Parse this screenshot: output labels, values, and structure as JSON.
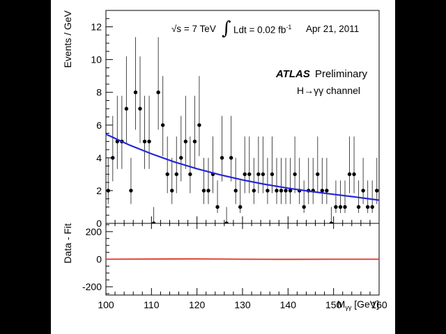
{
  "colors": {
    "background": "#000000",
    "panel": "#ffffff",
    "fit": "#2424d8",
    "residual": "#e0301e",
    "data": "#000000"
  },
  "annotations": {
    "energy": "√s = 7 TeV",
    "integral_symbol": "∫",
    "lumi": "Ldt = 0.02 fb",
    "lumi_exp": "-1",
    "date": "Apr 21, 2011",
    "experiment": "ATLAS",
    "status": "Preliminary",
    "channel": "H→γγ channel"
  },
  "chart_data": [
    {
      "type": "scatter",
      "name": "main",
      "ylabel": "Events / GeV",
      "xlim": [
        100,
        160
      ],
      "ylim": [
        0,
        13
      ],
      "yticks": [
        0,
        2,
        4,
        6,
        8,
        10,
        12
      ],
      "grid": false,
      "series": [
        {
          "name": "Data",
          "x": [
            100.5,
            101.5,
            102.5,
            103.5,
            104.5,
            105.5,
            106.5,
            107.5,
            108.5,
            109.5,
            110.5,
            111.5,
            112.5,
            113.5,
            114.5,
            115.5,
            116.5,
            117.5,
            118.5,
            119.5,
            120.5,
            121.5,
            122.5,
            123.5,
            124.5,
            125.5,
            126.5,
            127.5,
            128.5,
            129.5,
            130.5,
            131.5,
            132.5,
            133.5,
            134.5,
            135.5,
            136.5,
            137.5,
            138.5,
            139.5,
            140.5,
            141.5,
            142.5,
            143.5,
            144.5,
            145.5,
            146.5,
            147.5,
            148.5,
            149.5,
            150.5,
            151.5,
            152.5,
            153.5,
            154.5,
            155.5,
            156.5,
            157.5,
            158.5,
            159.5
          ],
          "y": [
            2,
            4,
            5,
            5,
            7,
            2,
            8,
            7,
            5,
            5,
            0,
            8,
            6,
            3,
            2,
            3,
            4,
            5,
            3,
            5,
            6,
            2,
            2,
            3,
            1,
            4,
            0,
            4,
            2,
            1,
            3,
            3,
            2,
            3,
            3,
            2,
            3,
            2,
            2,
            2,
            2,
            3,
            2,
            1,
            2,
            2,
            3,
            2,
            2,
            0,
            1,
            1,
            1,
            3,
            3,
            1,
            2,
            1,
            1,
            2
          ]
        },
        {
          "name": "Fit",
          "type": "line",
          "x": [
            100,
            105,
            110,
            115,
            120,
            125,
            130,
            135,
            140,
            145,
            150,
            155,
            160
          ],
          "y": [
            5.45,
            4.8,
            4.25,
            3.75,
            3.33,
            2.97,
            2.65,
            2.38,
            2.15,
            1.95,
            1.77,
            1.6,
            1.42
          ]
        }
      ]
    },
    {
      "type": "line",
      "name": "residual",
      "xlabel": "M",
      "xlabel_sub": "γγ",
      "xlabel_unit": "[GeV]",
      "ylabel": "Data - Fit",
      "xlim": [
        100,
        160
      ],
      "ylim": [
        -260,
        260
      ],
      "yticks": [
        -200,
        0,
        200
      ],
      "xticks": [
        100,
        110,
        120,
        130,
        140,
        150,
        160
      ],
      "grid": false,
      "series": [
        {
          "name": "Data - Fit",
          "x": [
            100,
            110,
            120,
            130,
            140,
            150,
            160
          ],
          "y": [
            0,
            1,
            2,
            0,
            -1,
            0,
            0
          ]
        }
      ]
    }
  ]
}
